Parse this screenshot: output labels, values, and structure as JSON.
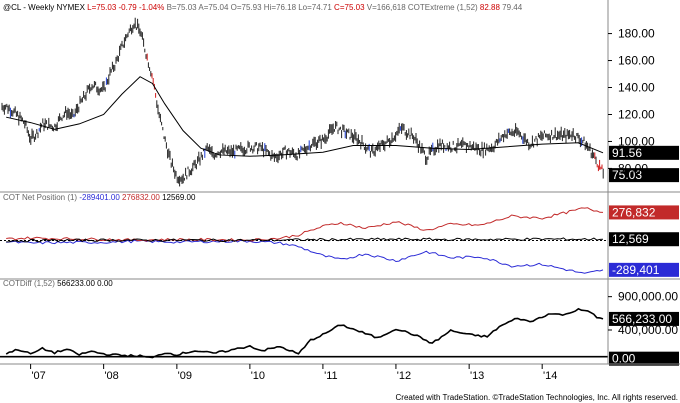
{
  "chart_data": [
    {
      "type": "bar",
      "title": "@CL - Weekly",
      "exchange": "NYMEX",
      "header_stats": [
        "L=75.03",
        "-0.79",
        "-1.04%",
        "B=75.03",
        "A=75.04",
        "O=75.93",
        "Hi=76.18",
        "Lo=74.71",
        "C=75.03",
        "V=166,618"
      ],
      "indicator_name": "COTExtreme (1,52)",
      "indicator_values": [
        "82.88",
        "79.44"
      ],
      "ylim": [
        64,
        196
      ],
      "ticks": [
        "180.00",
        "160.00",
        "140.00",
        "120.00",
        "100.00",
        "80.00"
      ],
      "x_ticks": [
        "'07",
        "'08",
        "'09",
        "'10",
        "'11",
        "'12",
        "'13",
        "'14"
      ],
      "last_close_label": "75.03",
      "ma_label": "91.56",
      "series": [
        {
          "name": "price",
          "points": [
            {
              "t": "2006-09",
              "v": 126
            },
            {
              "t": "2006-10",
              "v": 123
            },
            {
              "t": "2006-12",
              "v": 114
            },
            {
              "t": "2007-01",
              "v": 102
            },
            {
              "t": "2007-02",
              "v": 106
            },
            {
              "t": "2007-03",
              "v": 113
            },
            {
              "t": "2007-05",
              "v": 111
            },
            {
              "t": "2007-06",
              "v": 118
            },
            {
              "t": "2007-07",
              "v": 122
            },
            {
              "t": "2007-08",
              "v": 118
            },
            {
              "t": "2007-09",
              "v": 127
            },
            {
              "t": "2007-10",
              "v": 134
            },
            {
              "t": "2007-11",
              "v": 142
            },
            {
              "t": "2007-12",
              "v": 140
            },
            {
              "t": "2008-01",
              "v": 138
            },
            {
              "t": "2008-02",
              "v": 150
            },
            {
              "t": "2008-03",
              "v": 158
            },
            {
              "t": "2008-04",
              "v": 170
            },
            {
              "t": "2008-05",
              "v": 180
            },
            {
              "t": "2008-06",
              "v": 188
            },
            {
              "t": "2008-07",
              "v": 182
            },
            {
              "t": "2008-08",
              "v": 165
            },
            {
              "t": "2008-09",
              "v": 148
            },
            {
              "t": "2008-10",
              "v": 122
            },
            {
              "t": "2008-11",
              "v": 102
            },
            {
              "t": "2008-12",
              "v": 85
            },
            {
              "t": "2009-01",
              "v": 74
            },
            {
              "t": "2009-02",
              "v": 73
            },
            {
              "t": "2009-03",
              "v": 78
            },
            {
              "t": "2009-04",
              "v": 82
            },
            {
              "t": "2009-05",
              "v": 88
            },
            {
              "t": "2009-06",
              "v": 95
            },
            {
              "t": "2009-07",
              "v": 90
            },
            {
              "t": "2009-08",
              "v": 93
            },
            {
              "t": "2009-10",
              "v": 92
            },
            {
              "t": "2010-01",
              "v": 96
            },
            {
              "t": "2010-03",
              "v": 95
            },
            {
              "t": "2010-05",
              "v": 88
            },
            {
              "t": "2010-07",
              "v": 93
            },
            {
              "t": "2010-09",
              "v": 90
            },
            {
              "t": "2010-11",
              "v": 98
            },
            {
              "t": "2011-01",
              "v": 101
            },
            {
              "t": "2011-03",
              "v": 111
            },
            {
              "t": "2011-05",
              "v": 106
            },
            {
              "t": "2011-07",
              "v": 101
            },
            {
              "t": "2011-09",
              "v": 92
            },
            {
              "t": "2011-10",
              "v": 95
            },
            {
              "t": "2011-12",
              "v": 101
            },
            {
              "t": "2012-02",
              "v": 110
            },
            {
              "t": "2012-04",
              "v": 103
            },
            {
              "t": "2012-06",
              "v": 88
            },
            {
              "t": "2012-08",
              "v": 98
            },
            {
              "t": "2012-10",
              "v": 96
            },
            {
              "t": "2013-01",
              "v": 97
            },
            {
              "t": "2013-03",
              "v": 94
            },
            {
              "t": "2013-05",
              "v": 96
            },
            {
              "t": "2013-07",
              "v": 106
            },
            {
              "t": "2013-09",
              "v": 107
            },
            {
              "t": "2013-11",
              "v": 98
            },
            {
              "t": "2014-01",
              "v": 104
            },
            {
              "t": "2014-03",
              "v": 105
            },
            {
              "t": "2014-05",
              "v": 104
            },
            {
              "t": "2014-06",
              "v": 106
            },
            {
              "t": "2014-08",
              "v": 99
            },
            {
              "t": "2014-09",
              "v": 93
            },
            {
              "t": "2014-10",
              "v": 85
            },
            {
              "t": "2014-11",
              "v": 77
            },
            {
              "t": "2014-11",
              "v": 75
            }
          ]
        },
        {
          "name": "moving-average",
          "points": [
            {
              "t": "2006-09",
              "v": 118
            },
            {
              "t": "2007-01",
              "v": 114
            },
            {
              "t": "2007-05",
              "v": 109
            },
            {
              "t": "2007-09",
              "v": 113
            },
            {
              "t": "2008-01",
              "v": 120
            },
            {
              "t": "2008-04",
              "v": 135
            },
            {
              "t": "2008-07",
              "v": 148
            },
            {
              "t": "2008-09",
              "v": 143
            },
            {
              "t": "2008-11",
              "v": 128
            },
            {
              "t": "2009-02",
              "v": 108
            },
            {
              "t": "2009-05",
              "v": 95
            },
            {
              "t": "2009-08",
              "v": 90
            },
            {
              "t": "2010-01",
              "v": 89
            },
            {
              "t": "2010-06",
              "v": 90
            },
            {
              "t": "2011-01",
              "v": 92
            },
            {
              "t": "2011-06",
              "v": 97
            },
            {
              "t": "2012-01",
              "v": 97
            },
            {
              "t": "2012-07",
              "v": 95
            },
            {
              "t": "2013-01",
              "v": 94
            },
            {
              "t": "2013-07",
              "v": 96
            },
            {
              "t": "2014-01",
              "v": 98
            },
            {
              "t": "2014-07",
              "v": 99
            },
            {
              "t": "2014-11",
              "v": 91.56
            }
          ]
        }
      ]
    },
    {
      "type": "line",
      "title": "COT Net Position (1)",
      "legend_values": [
        "-289401.00",
        "276832.00",
        "12569.00"
      ],
      "ylim": [
        -350000,
        350000
      ],
      "box_labels": [
        "276,832",
        "12,569",
        "-289,401"
      ],
      "series": [
        {
          "name": "commercials",
          "color": "#2b2bd6",
          "points": [
            {
              "t": "2006-09",
              "v": -12000
            },
            {
              "t": "2007-01",
              "v": -25000
            },
            {
              "t": "2007-06",
              "v": -20000
            },
            {
              "t": "2008-01",
              "v": -18000
            },
            {
              "t": "2008-06",
              "v": -8000
            },
            {
              "t": "2009-01",
              "v": -15000
            },
            {
              "t": "2009-06",
              "v": -10000
            },
            {
              "t": "2010-01",
              "v": -6000
            },
            {
              "t": "2010-06",
              "v": -25000
            },
            {
              "t": "2010-09",
              "v": -60000
            },
            {
              "t": "2011-01",
              "v": -150000
            },
            {
              "t": "2011-04",
              "v": -190000
            },
            {
              "t": "2011-08",
              "v": -130000
            },
            {
              "t": "2012-01",
              "v": -200000
            },
            {
              "t": "2012-06",
              "v": -110000
            },
            {
              "t": "2012-10",
              "v": -170000
            },
            {
              "t": "2013-03",
              "v": -160000
            },
            {
              "t": "2013-08",
              "v": -250000
            },
            {
              "t": "2014-01",
              "v": -235000
            },
            {
              "t": "2014-06",
              "v": -300000
            },
            {
              "t": "2014-08",
              "v": -330000
            },
            {
              "t": "2014-11",
              "v": -289401
            }
          ]
        },
        {
          "name": "large-specs",
          "color": "#c22a2a",
          "points": [
            {
              "t": "2006-09",
              "v": 15000
            },
            {
              "t": "2007-01",
              "v": 25000
            },
            {
              "t": "2007-06",
              "v": 18000
            },
            {
              "t": "2008-01",
              "v": 12000
            },
            {
              "t": "2008-06",
              "v": 5000
            },
            {
              "t": "2009-01",
              "v": 10000
            },
            {
              "t": "2009-06",
              "v": 8000
            },
            {
              "t": "2010-01",
              "v": 5000
            },
            {
              "t": "2010-06",
              "v": 22000
            },
            {
              "t": "2010-09",
              "v": 55000
            },
            {
              "t": "2011-01",
              "v": 140000
            },
            {
              "t": "2011-04",
              "v": 175000
            },
            {
              "t": "2011-08",
              "v": 120000
            },
            {
              "t": "2012-01",
              "v": 185000
            },
            {
              "t": "2012-06",
              "v": 100000
            },
            {
              "t": "2012-10",
              "v": 160000
            },
            {
              "t": "2013-03",
              "v": 150000
            },
            {
              "t": "2013-08",
              "v": 240000
            },
            {
              "t": "2014-01",
              "v": 220000
            },
            {
              "t": "2014-06",
              "v": 290000
            },
            {
              "t": "2014-08",
              "v": 320000
            },
            {
              "t": "2014-11",
              "v": 276832
            }
          ]
        },
        {
          "name": "small-specs",
          "color": "#000000",
          "points": [
            {
              "t": "2006-09",
              "v": -3000
            },
            {
              "t": "2008-01",
              "v": 4000
            },
            {
              "t": "2010-01",
              "v": 2000
            },
            {
              "t": "2011-01",
              "v": 9000
            },
            {
              "t": "2012-01",
              "v": 12000
            },
            {
              "t": "2013-01",
              "v": 10000
            },
            {
              "t": "2014-01",
              "v": 14000
            },
            {
              "t": "2014-11",
              "v": 12569
            }
          ]
        }
      ]
    },
    {
      "type": "line",
      "title": "COTDiff (1,52)",
      "legend_values": [
        "566233.00",
        "0.00"
      ],
      "ylim": [
        -50000,
        1000000
      ],
      "ticks": [
        "900,000.00",
        "400,000.00"
      ],
      "box_labels": [
        "566,233.00",
        "0.00"
      ],
      "series": [
        {
          "name": "cot-diff",
          "color": "#000000",
          "points": [
            {
              "t": "2006-09",
              "v": 50000
            },
            {
              "t": "2006-11",
              "v": 110000
            },
            {
              "t": "2007-01",
              "v": 40000
            },
            {
              "t": "2007-03",
              "v": 120000
            },
            {
              "t": "2007-05",
              "v": 60000
            },
            {
              "t": "2007-07",
              "v": 110000
            },
            {
              "t": "2007-09",
              "v": 30000
            },
            {
              "t": "2007-11",
              "v": 80000
            },
            {
              "t": "2008-01",
              "v": 40000
            },
            {
              "t": "2008-04",
              "v": 20000
            },
            {
              "t": "2008-07",
              "v": 10000
            },
            {
              "t": "2008-09",
              "v": -20000
            },
            {
              "t": "2008-11",
              "v": 60000
            },
            {
              "t": "2009-01",
              "v": 30000
            },
            {
              "t": "2009-04",
              "v": 90000
            },
            {
              "t": "2009-07",
              "v": 50000
            },
            {
              "t": "2009-10",
              "v": 100000
            },
            {
              "t": "2010-01",
              "v": 160000
            },
            {
              "t": "2010-03",
              "v": 90000
            },
            {
              "t": "2010-06",
              "v": 150000
            },
            {
              "t": "2010-09",
              "v": 40000
            },
            {
              "t": "2010-11",
              "v": 250000
            },
            {
              "t": "2011-01",
              "v": 330000
            },
            {
              "t": "2011-04",
              "v": 480000
            },
            {
              "t": "2011-07",
              "v": 380000
            },
            {
              "t": "2011-10",
              "v": 280000
            },
            {
              "t": "2012-01",
              "v": 420000
            },
            {
              "t": "2012-04",
              "v": 330000
            },
            {
              "t": "2012-07",
              "v": 200000
            },
            {
              "t": "2012-10",
              "v": 390000
            },
            {
              "t": "2013-01",
              "v": 330000
            },
            {
              "t": "2013-04",
              "v": 300000
            },
            {
              "t": "2013-06",
              "v": 450000
            },
            {
              "t": "2013-09",
              "v": 580000
            },
            {
              "t": "2013-11",
              "v": 520000
            },
            {
              "t": "2014-02",
              "v": 640000
            },
            {
              "t": "2014-05",
              "v": 630000
            },
            {
              "t": "2014-07",
              "v": 720000
            },
            {
              "t": "2014-09",
              "v": 660000
            },
            {
              "t": "2014-10",
              "v": 590000
            },
            {
              "t": "2014-11",
              "v": 566233
            }
          ]
        }
      ]
    }
  ],
  "footer": "Created with TradeStation. ©TradeStation Technologies, Inc. All rights reserved.",
  "colors": {
    "price_bar": "#222222",
    "price_up_signal": "#1f3ed6",
    "price_down_signal": "#d11a1a",
    "ma_line": "#000000",
    "label_bg": "#000000",
    "commercials_box": "#2b2bd6",
    "large_specs_box": "#c22a2a",
    "header_text": "#333333"
  }
}
